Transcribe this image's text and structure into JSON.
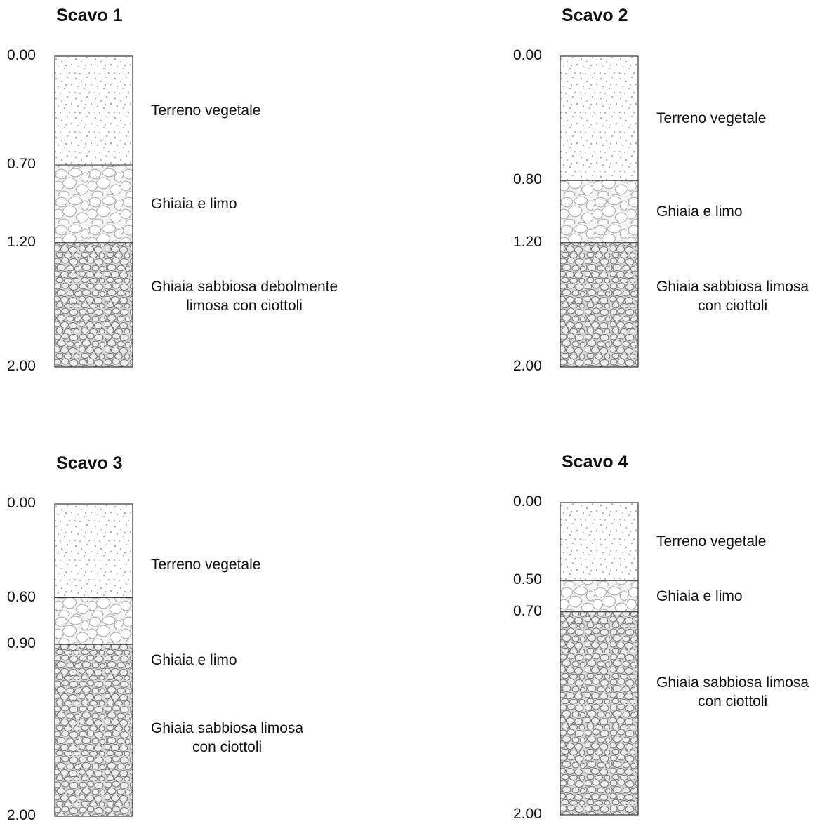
{
  "logs": [
    {
      "title": "Scavo 1",
      "depths": [
        "0.00",
        "0.70",
        "1.20",
        "2.00"
      ],
      "layers": [
        {
          "from": 0.0,
          "to": 0.7,
          "type": "terreno",
          "label": [
            "Terreno vegetale"
          ]
        },
        {
          "from": 0.7,
          "to": 1.2,
          "type": "ghiaia-limo",
          "label": [
            "Ghiaia e limo"
          ]
        },
        {
          "from": 1.2,
          "to": 2.0,
          "type": "ghiaia-sabbiosa",
          "label": [
            "Ghiaia sabbiosa debolmente",
            "limosa con ciottoli"
          ]
        }
      ]
    },
    {
      "title": "Scavo 2",
      "depths": [
        "0.00",
        "0.80",
        "1.20",
        "2.00"
      ],
      "layers": [
        {
          "from": 0.0,
          "to": 0.8,
          "type": "terreno",
          "label": [
            "Terreno vegetale"
          ]
        },
        {
          "from": 0.8,
          "to": 1.2,
          "type": "ghiaia-limo",
          "label": [
            "Ghiaia e limo"
          ]
        },
        {
          "from": 1.2,
          "to": 2.0,
          "type": "ghiaia-sabbiosa",
          "label": [
            "Ghiaia sabbiosa limosa",
            "con ciottoli"
          ]
        }
      ]
    },
    {
      "title": "Scavo 3",
      "depths": [
        "0.00",
        "0.60",
        "0.90",
        "2.00"
      ],
      "layers": [
        {
          "from": 0.0,
          "to": 0.6,
          "type": "terreno",
          "label": [
            "Terreno vegetale"
          ]
        },
        {
          "from": 0.6,
          "to": 0.9,
          "type": "ghiaia-limo",
          "label": [
            "Ghiaia e limo"
          ]
        },
        {
          "from": 0.9,
          "to": 2.0,
          "type": "ghiaia-sabbiosa",
          "label": [
            "Ghiaia sabbiosa limosa",
            "con ciottoli"
          ]
        }
      ]
    },
    {
      "title": "Scavo 4",
      "depths": [
        "0.00",
        "0.50",
        "0.70",
        "2.00"
      ],
      "layers": [
        {
          "from": 0.0,
          "to": 0.5,
          "type": "terreno",
          "label": [
            "Terreno vegetale"
          ]
        },
        {
          "from": 0.5,
          "to": 0.7,
          "type": "ghiaia-limo",
          "label": [
            "Ghiaia e limo"
          ]
        },
        {
          "from": 0.7,
          "to": 2.0,
          "type": "ghiaia-sabbiosa",
          "label": [
            "Ghiaia sabbiosa limosa",
            "con ciottoli"
          ]
        }
      ]
    }
  ],
  "colors": {
    "terreno_bg": "#ffffff",
    "terreno_dots": "#555555",
    "ghiaia_limo_bg": "#f4f4f4",
    "ghiaia_limo_stroke": "#a8a8a8",
    "ghiaia_sabbiosa_bg": "#d6d6d6",
    "ghiaia_sabbiosa_stroke": "#6e6e6e",
    "ghiaia_sabbiosa_fill": "#eeeeee",
    "outline": "#333333"
  }
}
